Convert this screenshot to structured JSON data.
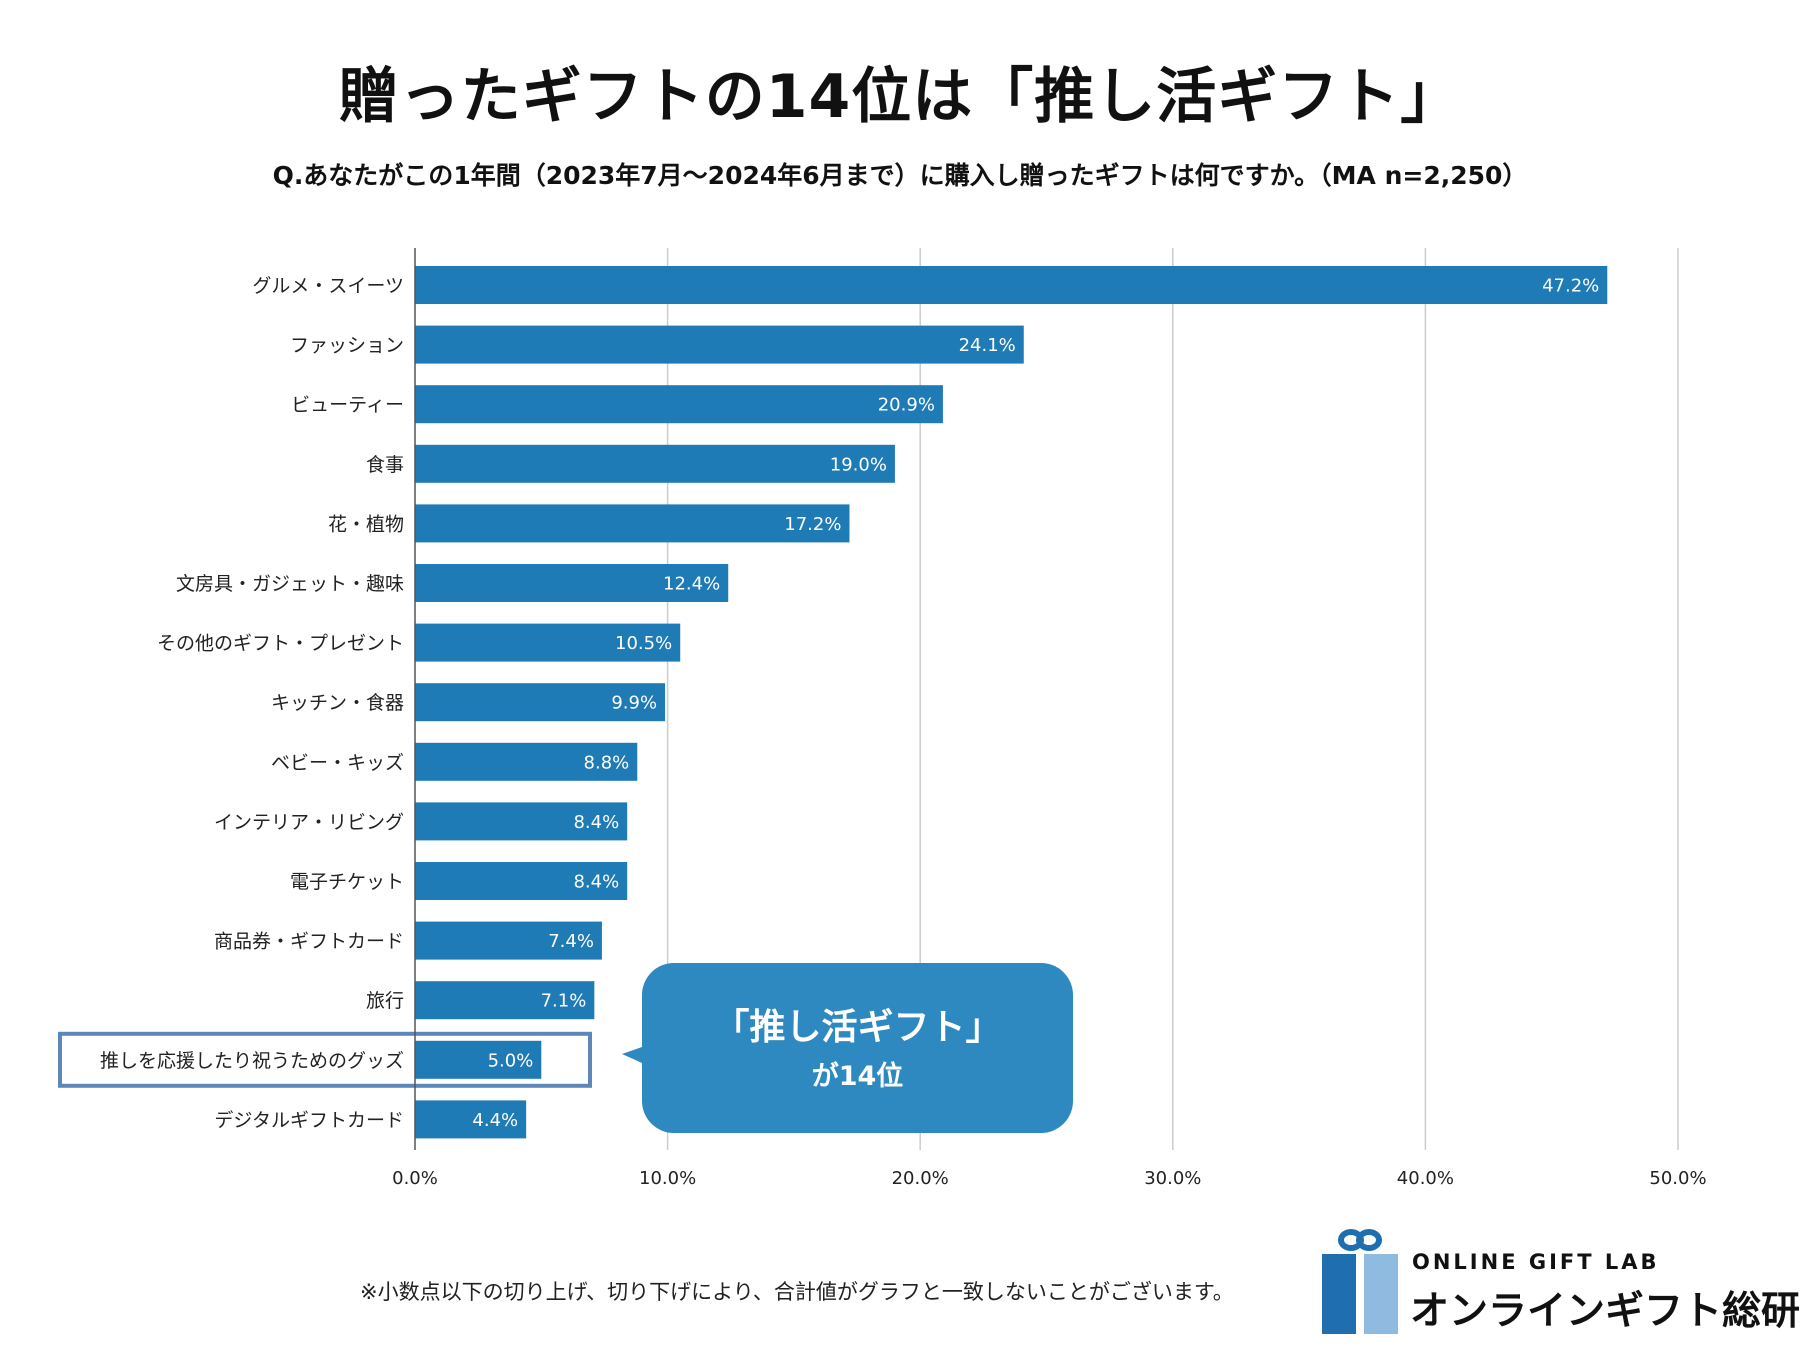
{
  "title": "贈ったギフトの14位は「推し活ギフト」",
  "subtitle": "Q.あなたがこの1年間（2023年7月～2024年6月まで）に購入し贈ったギフトは何ですか。（MA n=2,250）",
  "chart_data": {
    "type": "bar",
    "orientation": "horizontal",
    "title": "贈ったギフトの14位は「推し活ギフト」",
    "subtitle": "Q.あなたがこの1年間（2023年7月～2024年6月まで）に購入し贈ったギフトは何ですか。（MA n=2,250）",
    "xlabel": "",
    "ylabel": "",
    "xlim": [
      0,
      50
    ],
    "grid": true,
    "value_suffix": "%",
    "categories": [
      "グルメ・スイーツ",
      "ファッション",
      "ビューティー",
      "食事",
      "花・植物",
      "文房具・ガジェット・趣味",
      "その他のギフト・プレゼント",
      "キッチン・食器",
      "ベビー・キッズ",
      "インテリア・リビング",
      "電子チケット",
      "商品券・ギフトカード",
      "旅行",
      "推しを応援したり祝うためのグッズ",
      "デジタルギフトカード"
    ],
    "values": [
      47.2,
      24.1,
      20.9,
      19.0,
      17.2,
      12.4,
      10.5,
      9.9,
      8.8,
      8.4,
      8.4,
      7.4,
      7.1,
      5.0,
      4.4
    ],
    "data_labels": [
      "47.2%",
      "24.1%",
      "20.9%",
      "19.0%",
      "17.2%",
      "12.4%",
      "10.5%",
      "9.9%",
      "8.8%",
      "8.4%",
      "8.4%",
      "7.4%",
      "7.1%",
      "5.0%",
      "4.4%"
    ],
    "ticks": [
      0,
      10,
      20,
      30,
      40,
      50
    ],
    "tick_labels": [
      "0.0%",
      "10.0%",
      "20.0%",
      "30.0%",
      "40.0%",
      "50.0%"
    ],
    "highlight_category": "推しを応援したり祝うためのグッズ",
    "annotation": {
      "line1": "「推し活ギフト」",
      "line2": "が14位"
    }
  },
  "colors": {
    "bar": "#1f7bb5",
    "callout": "#2d89c0",
    "highlight_border": "#5b88b8",
    "grid": "#cccccc",
    "logo_dark": "#1f6fb0",
    "logo_light": "#8fbbe0"
  },
  "footnote": "※小数点以下の切り上げ、切り下げにより、合計値がグラフと一致しないことがございます。",
  "logo": {
    "en": "ONLINE GIFT LAB",
    "ja": "オンラインギフト総研"
  }
}
